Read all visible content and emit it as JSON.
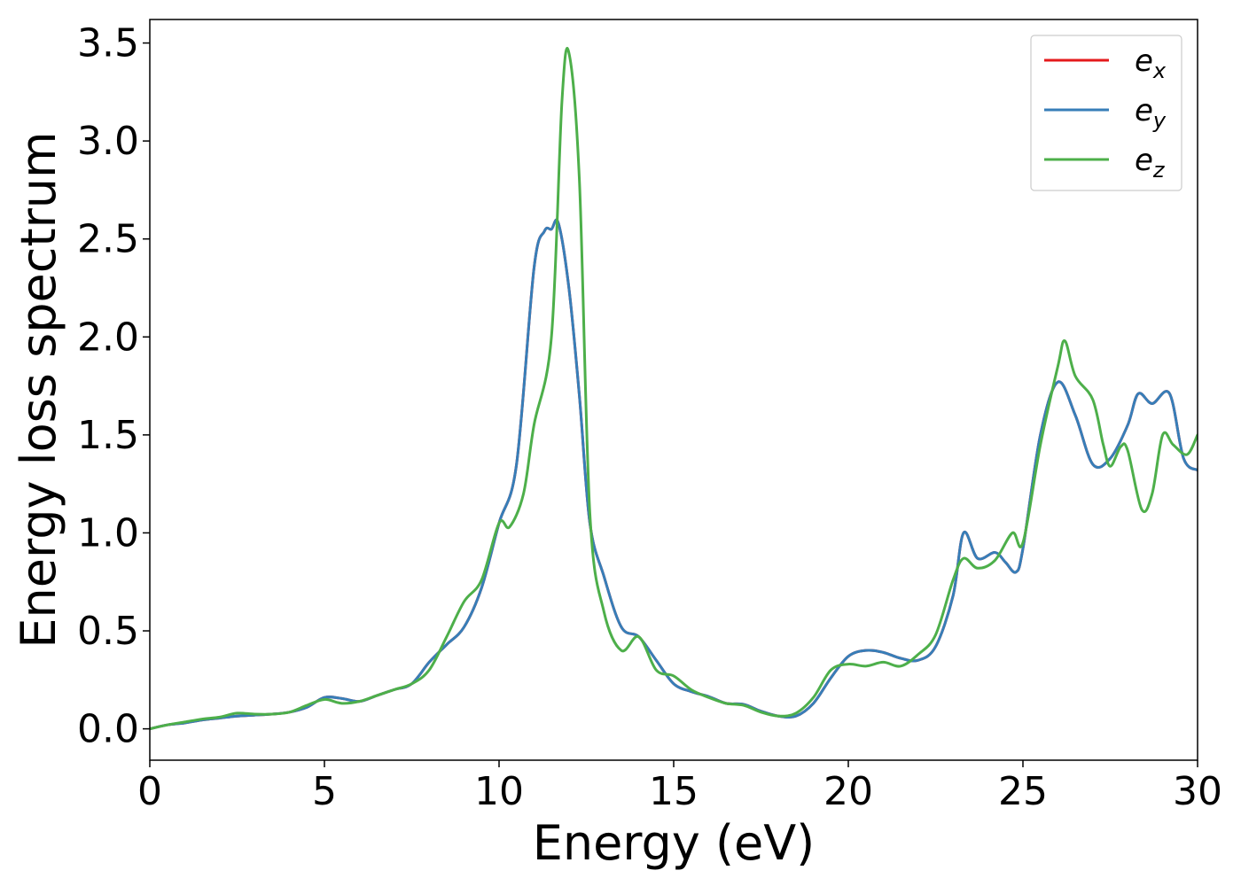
{
  "chart_data": {
    "type": "line",
    "xlabel": "Energy (eV)",
    "ylabel": "Energy loss spectrum",
    "xlim": [
      0,
      30
    ],
    "ylim": [
      -0.16,
      3.62
    ],
    "xticks": [
      "0",
      "5",
      "10",
      "15",
      "20",
      "25",
      "30"
    ],
    "yticks": [
      "0.0",
      "0.5",
      "1.0",
      "1.5",
      "2.0",
      "2.5",
      "3.0",
      "3.5"
    ],
    "grid": false,
    "legend_position": "top-right",
    "series": [
      {
        "name": "e_x",
        "legend_base": "e",
        "legend_sub": "x",
        "color": "#e41a1c",
        "points": [
          [
            0,
            0
          ],
          [
            0.5,
            0.02
          ],
          [
            1,
            0.03
          ],
          [
            1.5,
            0.045
          ],
          [
            2,
            0.055
          ],
          [
            2.5,
            0.065
          ],
          [
            3,
            0.07
          ],
          [
            3.5,
            0.075
          ],
          [
            4,
            0.085
          ],
          [
            4.5,
            0.11
          ],
          [
            5,
            0.16
          ],
          [
            5.5,
            0.155
          ],
          [
            6,
            0.14
          ],
          [
            6.5,
            0.17
          ],
          [
            7,
            0.2
          ],
          [
            7.5,
            0.23
          ],
          [
            8,
            0.34
          ],
          [
            8.5,
            0.43
          ],
          [
            9,
            0.52
          ],
          [
            9.5,
            0.72
          ],
          [
            10,
            1.05
          ],
          [
            10.5,
            1.35
          ],
          [
            11,
            2.35
          ],
          [
            11.3,
            2.54
          ],
          [
            11.5,
            2.55
          ],
          [
            11.7,
            2.58
          ],
          [
            12,
            2.25
          ],
          [
            12.3,
            1.7
          ],
          [
            12.6,
            1.05
          ],
          [
            13,
            0.78
          ],
          [
            13.5,
            0.52
          ],
          [
            14,
            0.47
          ],
          [
            14.5,
            0.35
          ],
          [
            15,
            0.23
          ],
          [
            15.5,
            0.19
          ],
          [
            16,
            0.165
          ],
          [
            16.5,
            0.13
          ],
          [
            17,
            0.125
          ],
          [
            17.5,
            0.09
          ],
          [
            18,
            0.065
          ],
          [
            18.5,
            0.065
          ],
          [
            19,
            0.13
          ],
          [
            19.5,
            0.26
          ],
          [
            20,
            0.37
          ],
          [
            20.5,
            0.4
          ],
          [
            21,
            0.39
          ],
          [
            21.5,
            0.36
          ],
          [
            22,
            0.35
          ],
          [
            22.5,
            0.42
          ],
          [
            23,
            0.68
          ],
          [
            23.3,
            1.0
          ],
          [
            23.7,
            0.87
          ],
          [
            24.2,
            0.9
          ],
          [
            24.5,
            0.85
          ],
          [
            24.8,
            0.8
          ],
          [
            25,
            0.92
          ],
          [
            25.5,
            1.5
          ],
          [
            26,
            1.77
          ],
          [
            26.5,
            1.6
          ],
          [
            27,
            1.35
          ],
          [
            27.5,
            1.38
          ],
          [
            28,
            1.55
          ],
          [
            28.3,
            1.71
          ],
          [
            28.7,
            1.66
          ],
          [
            29.2,
            1.71
          ],
          [
            29.6,
            1.38
          ],
          [
            30,
            1.32
          ]
        ]
      },
      {
        "name": "e_y",
        "legend_base": "e",
        "legend_sub": "y",
        "color": "#377eb8",
        "points": [
          [
            0,
            0
          ],
          [
            0.5,
            0.02
          ],
          [
            1,
            0.03
          ],
          [
            1.5,
            0.045
          ],
          [
            2,
            0.055
          ],
          [
            2.5,
            0.065
          ],
          [
            3,
            0.07
          ],
          [
            3.5,
            0.075
          ],
          [
            4,
            0.085
          ],
          [
            4.5,
            0.11
          ],
          [
            5,
            0.16
          ],
          [
            5.5,
            0.155
          ],
          [
            6,
            0.14
          ],
          [
            6.5,
            0.17
          ],
          [
            7,
            0.2
          ],
          [
            7.5,
            0.23
          ],
          [
            8,
            0.34
          ],
          [
            8.5,
            0.43
          ],
          [
            9,
            0.52
          ],
          [
            9.5,
            0.72
          ],
          [
            10,
            1.05
          ],
          [
            10.5,
            1.35
          ],
          [
            11,
            2.35
          ],
          [
            11.3,
            2.54
          ],
          [
            11.5,
            2.55
          ],
          [
            11.7,
            2.58
          ],
          [
            12,
            2.25
          ],
          [
            12.3,
            1.7
          ],
          [
            12.6,
            1.05
          ],
          [
            13,
            0.78
          ],
          [
            13.5,
            0.52
          ],
          [
            14,
            0.47
          ],
          [
            14.5,
            0.35
          ],
          [
            15,
            0.23
          ],
          [
            15.5,
            0.19
          ],
          [
            16,
            0.165
          ],
          [
            16.5,
            0.13
          ],
          [
            17,
            0.125
          ],
          [
            17.5,
            0.09
          ],
          [
            18,
            0.065
          ],
          [
            18.5,
            0.065
          ],
          [
            19,
            0.13
          ],
          [
            19.5,
            0.26
          ],
          [
            20,
            0.37
          ],
          [
            20.5,
            0.4
          ],
          [
            21,
            0.39
          ],
          [
            21.5,
            0.36
          ],
          [
            22,
            0.35
          ],
          [
            22.5,
            0.42
          ],
          [
            23,
            0.68
          ],
          [
            23.3,
            1.0
          ],
          [
            23.7,
            0.87
          ],
          [
            24.2,
            0.9
          ],
          [
            24.5,
            0.85
          ],
          [
            24.8,
            0.8
          ],
          [
            25,
            0.92
          ],
          [
            25.5,
            1.5
          ],
          [
            26,
            1.77
          ],
          [
            26.5,
            1.6
          ],
          [
            27,
            1.35
          ],
          [
            27.5,
            1.38
          ],
          [
            28,
            1.55
          ],
          [
            28.3,
            1.71
          ],
          [
            28.7,
            1.66
          ],
          [
            29.2,
            1.71
          ],
          [
            29.6,
            1.38
          ],
          [
            30,
            1.32
          ]
        ]
      },
      {
        "name": "e_z",
        "legend_base": "e",
        "legend_sub": "z",
        "color": "#4daf4a",
        "points": [
          [
            0,
            0
          ],
          [
            0.5,
            0.02
          ],
          [
            1,
            0.035
          ],
          [
            1.5,
            0.05
          ],
          [
            2,
            0.06
          ],
          [
            2.5,
            0.08
          ],
          [
            3,
            0.075
          ],
          [
            3.5,
            0.075
          ],
          [
            4,
            0.085
          ],
          [
            4.5,
            0.12
          ],
          [
            5,
            0.15
          ],
          [
            5.5,
            0.13
          ],
          [
            6,
            0.14
          ],
          [
            6.5,
            0.17
          ],
          [
            7,
            0.2
          ],
          [
            7.5,
            0.23
          ],
          [
            8,
            0.3
          ],
          [
            8.5,
            0.47
          ],
          [
            9,
            0.65
          ],
          [
            9.5,
            0.76
          ],
          [
            10,
            1.05
          ],
          [
            10.3,
            1.03
          ],
          [
            10.7,
            1.2
          ],
          [
            11,
            1.55
          ],
          [
            11.5,
            2.0
          ],
          [
            11.8,
            3.2
          ],
          [
            12,
            3.45
          ],
          [
            12.3,
            2.8
          ],
          [
            12.6,
            1.1
          ],
          [
            13,
            0.6
          ],
          [
            13.5,
            0.4
          ],
          [
            14,
            0.47
          ],
          [
            14.5,
            0.3
          ],
          [
            15,
            0.27
          ],
          [
            15.5,
            0.2
          ],
          [
            16,
            0.16
          ],
          [
            16.5,
            0.13
          ],
          [
            17,
            0.12
          ],
          [
            17.5,
            0.085
          ],
          [
            18,
            0.065
          ],
          [
            18.5,
            0.08
          ],
          [
            19,
            0.16
          ],
          [
            19.5,
            0.3
          ],
          [
            20,
            0.33
          ],
          [
            20.5,
            0.32
          ],
          [
            21,
            0.34
          ],
          [
            21.5,
            0.32
          ],
          [
            22,
            0.38
          ],
          [
            22.5,
            0.48
          ],
          [
            23,
            0.76
          ],
          [
            23.3,
            0.87
          ],
          [
            23.7,
            0.82
          ],
          [
            24.2,
            0.86
          ],
          [
            24.7,
            1.0
          ],
          [
            25,
            0.95
          ],
          [
            25.5,
            1.45
          ],
          [
            26,
            1.85
          ],
          [
            26.2,
            1.98
          ],
          [
            26.5,
            1.8
          ],
          [
            27,
            1.68
          ],
          [
            27.3,
            1.45
          ],
          [
            27.5,
            1.34
          ],
          [
            27.8,
            1.44
          ],
          [
            28,
            1.42
          ],
          [
            28.4,
            1.12
          ],
          [
            28.7,
            1.2
          ],
          [
            29,
            1.5
          ],
          [
            29.3,
            1.45
          ],
          [
            29.7,
            1.4
          ],
          [
            30,
            1.5
          ]
        ]
      }
    ]
  }
}
